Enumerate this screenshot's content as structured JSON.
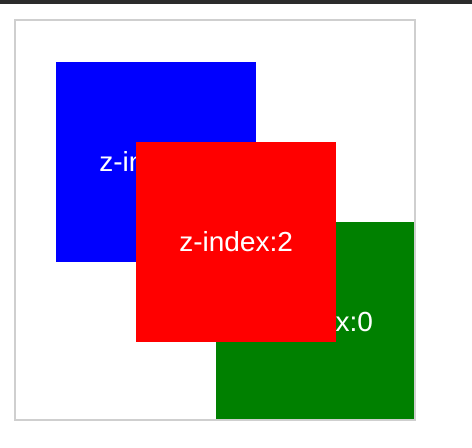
{
  "boxes": [
    {
      "label": "z-index:1",
      "color": "#0000ff",
      "z_index": 1
    },
    {
      "label": "z-index:2",
      "color": "#ff0000",
      "z_index": 2
    },
    {
      "label": "z-index:0",
      "color": "#008000",
      "z_index": 0
    }
  ]
}
